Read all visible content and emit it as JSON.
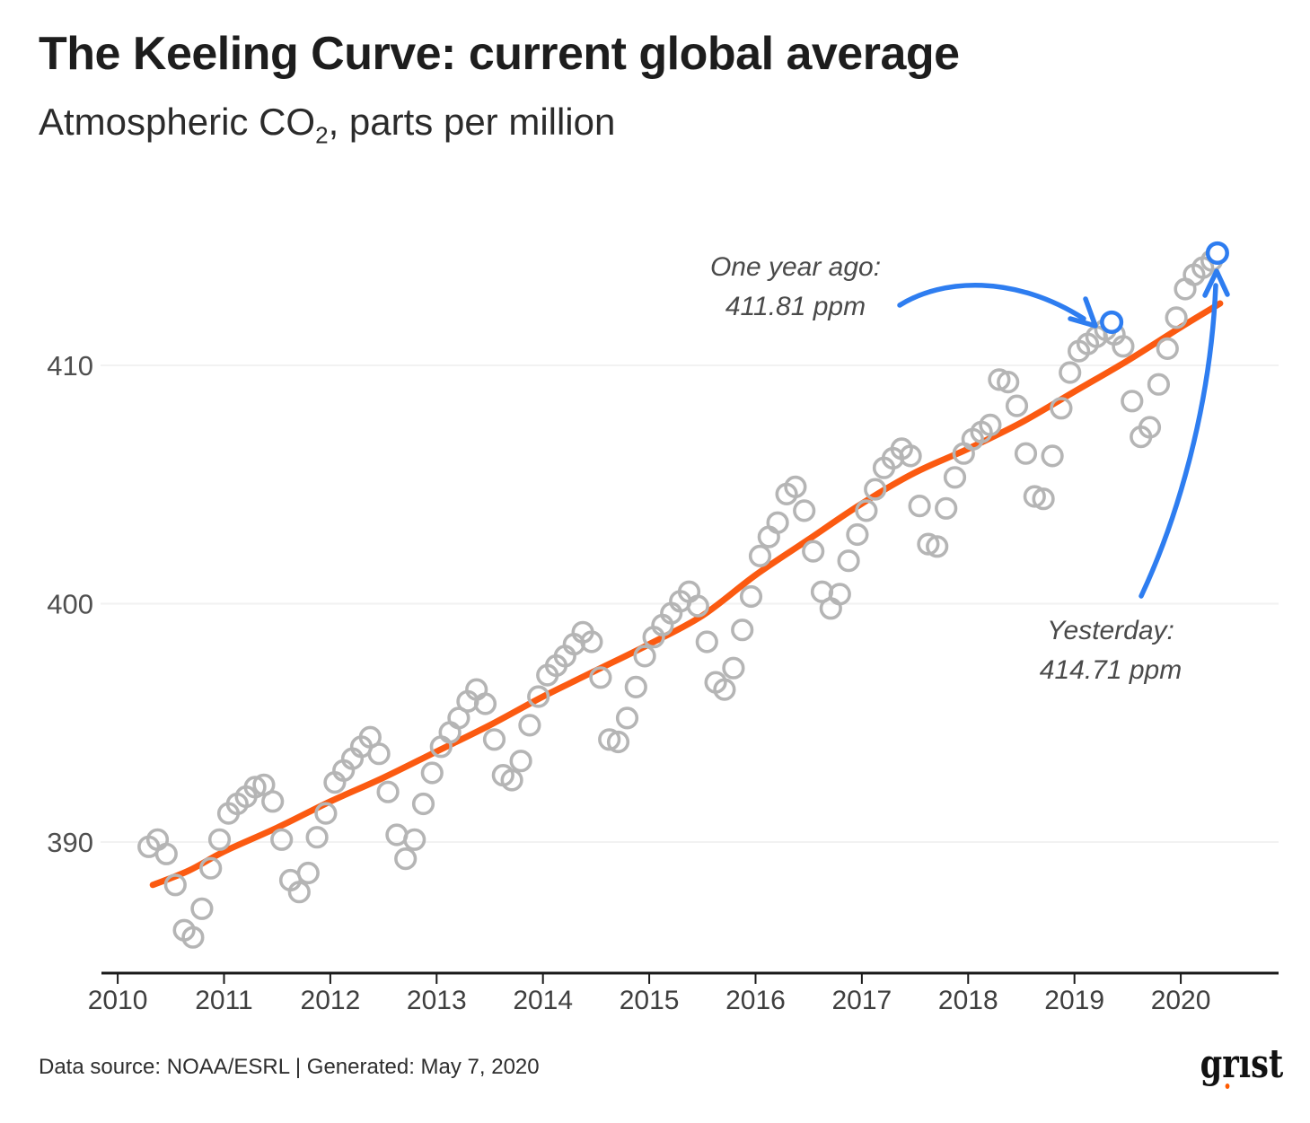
{
  "header": {
    "title": "The Keeling Curve: current global average",
    "subtitle_prefix": "Atmospheric CO",
    "subtitle_sub": "2",
    "subtitle_suffix": ", parts per million"
  },
  "annotations": [
    {
      "id": "one-year-ago",
      "line1": "One year ago:",
      "line2": "411.81 ppm"
    },
    {
      "id": "yesterday",
      "line1": "Yesterday:",
      "line2": "414.71 ppm"
    }
  ],
  "footer": {
    "source_text": "Data source: NOAA/ESRL | Generated: May 7, 2020",
    "logo_text": "grist"
  },
  "colors": {
    "trend_orange": "#fb5a11",
    "highlight_blue": "#2e7df0",
    "point_gray": "#b5b5b5",
    "gridline": "#f2f2f2",
    "axis": "#1a1a1a",
    "tick_label": "#454545",
    "logo_dot_orange": "#ff5a00"
  },
  "chart_data": {
    "type": "scatter",
    "title": "The Keeling Curve: current global average",
    "ylabel": "Atmospheric CO2, parts per million",
    "xlabel": "",
    "grid": "horizontal-only",
    "legend": "none",
    "x_ticks": [
      2010,
      2011,
      2012,
      2013,
      2014,
      2015,
      2016,
      2017,
      2018,
      2019,
      2020
    ],
    "y_ticks": [
      390,
      400,
      410
    ],
    "xlim": [
      2009.864,
      2020.92
    ],
    "ylim": [
      384.5,
      416.0
    ],
    "series": [
      {
        "name": "monthly-mean-co2",
        "style": "open-circle",
        "points": [
          [
            2010.292,
            389.8
          ],
          [
            2010.375,
            390.1
          ],
          [
            2010.458,
            389.5
          ],
          [
            2010.542,
            388.2
          ],
          [
            2010.625,
            386.3
          ],
          [
            2010.708,
            386.0
          ],
          [
            2010.792,
            387.2
          ],
          [
            2010.875,
            388.9
          ],
          [
            2010.958,
            390.1
          ],
          [
            2011.042,
            391.2
          ],
          [
            2011.125,
            391.6
          ],
          [
            2011.208,
            391.9
          ],
          [
            2011.292,
            392.3
          ],
          [
            2011.375,
            392.4
          ],
          [
            2011.458,
            391.7
          ],
          [
            2011.542,
            390.1
          ],
          [
            2011.625,
            388.4
          ],
          [
            2011.708,
            387.9
          ],
          [
            2011.792,
            388.7
          ],
          [
            2011.875,
            390.2
          ],
          [
            2011.958,
            391.2
          ],
          [
            2012.042,
            392.5
          ],
          [
            2012.125,
            393.0
          ],
          [
            2012.208,
            393.5
          ],
          [
            2012.292,
            394.0
          ],
          [
            2012.375,
            394.4
          ],
          [
            2012.458,
            393.7
          ],
          [
            2012.542,
            392.1
          ],
          [
            2012.625,
            390.3
          ],
          [
            2012.708,
            389.3
          ],
          [
            2012.792,
            390.1
          ],
          [
            2012.875,
            391.6
          ],
          [
            2012.958,
            392.9
          ],
          [
            2013.042,
            394.0
          ],
          [
            2013.125,
            394.6
          ],
          [
            2013.208,
            395.2
          ],
          [
            2013.292,
            395.9
          ],
          [
            2013.375,
            396.4
          ],
          [
            2013.458,
            395.8
          ],
          [
            2013.542,
            394.3
          ],
          [
            2013.625,
            392.8
          ],
          [
            2013.708,
            392.6
          ],
          [
            2013.792,
            393.4
          ],
          [
            2013.875,
            394.9
          ],
          [
            2013.958,
            396.1
          ],
          [
            2014.042,
            397.0
          ],
          [
            2014.125,
            397.4
          ],
          [
            2014.208,
            397.8
          ],
          [
            2014.292,
            398.3
          ],
          [
            2014.375,
            398.8
          ],
          [
            2014.458,
            398.4
          ],
          [
            2014.542,
            396.9
          ],
          [
            2014.625,
            394.3
          ],
          [
            2014.708,
            394.2
          ],
          [
            2014.792,
            395.2
          ],
          [
            2014.875,
            396.5
          ],
          [
            2014.958,
            397.8
          ],
          [
            2015.042,
            398.6
          ],
          [
            2015.125,
            399.1
          ],
          [
            2015.208,
            399.6
          ],
          [
            2015.292,
            400.1
          ],
          [
            2015.375,
            400.5
          ],
          [
            2015.458,
            399.9
          ],
          [
            2015.542,
            398.4
          ],
          [
            2015.625,
            396.7
          ],
          [
            2015.708,
            396.4
          ],
          [
            2015.792,
            397.3
          ],
          [
            2015.875,
            398.9
          ],
          [
            2015.958,
            400.3
          ],
          [
            2016.042,
            402.0
          ],
          [
            2016.125,
            402.8
          ],
          [
            2016.208,
            403.4
          ],
          [
            2016.292,
            404.6
          ],
          [
            2016.375,
            404.9
          ],
          [
            2016.458,
            403.9
          ],
          [
            2016.542,
            402.2
          ],
          [
            2016.625,
            400.5
          ],
          [
            2016.708,
            399.8
          ],
          [
            2016.792,
            400.4
          ],
          [
            2016.875,
            401.8
          ],
          [
            2016.958,
            402.9
          ],
          [
            2017.042,
            403.9
          ],
          [
            2017.125,
            404.8
          ],
          [
            2017.208,
            405.7
          ],
          [
            2017.292,
            406.1
          ],
          [
            2017.375,
            406.5
          ],
          [
            2017.458,
            406.2
          ],
          [
            2017.542,
            404.1
          ],
          [
            2017.625,
            402.5
          ],
          [
            2017.708,
            402.4
          ],
          [
            2017.792,
            404.0
          ],
          [
            2017.875,
            405.3
          ],
          [
            2017.958,
            406.3
          ],
          [
            2018.042,
            406.9
          ],
          [
            2018.125,
            407.2
          ],
          [
            2018.208,
            407.5
          ],
          [
            2018.292,
            409.4
          ],
          [
            2018.375,
            409.3
          ],
          [
            2018.458,
            408.3
          ],
          [
            2018.542,
            406.3
          ],
          [
            2018.625,
            404.5
          ],
          [
            2018.708,
            404.4
          ],
          [
            2018.792,
            406.2
          ],
          [
            2018.875,
            408.2
          ],
          [
            2018.958,
            409.7
          ],
          [
            2019.042,
            410.6
          ],
          [
            2019.125,
            410.9
          ],
          [
            2019.208,
            411.2
          ],
          [
            2019.292,
            411.5
          ],
          [
            2019.375,
            411.3
          ],
          [
            2019.458,
            410.8
          ],
          [
            2019.542,
            408.5
          ],
          [
            2019.625,
            407.0
          ],
          [
            2019.708,
            407.4
          ],
          [
            2019.792,
            409.2
          ],
          [
            2019.875,
            410.7
          ],
          [
            2019.958,
            412.0
          ],
          [
            2020.042,
            413.2
          ],
          [
            2020.125,
            413.8
          ],
          [
            2020.208,
            414.1
          ],
          [
            2020.292,
            414.4
          ]
        ]
      },
      {
        "name": "seasonally-adjusted-trend",
        "style": "line",
        "points": [
          [
            2010.33,
            388.2
          ],
          [
            2010.67,
            388.8
          ],
          [
            2011.0,
            389.6
          ],
          [
            2011.5,
            390.6
          ],
          [
            2012.0,
            391.7
          ],
          [
            2012.5,
            392.7
          ],
          [
            2013.0,
            393.8
          ],
          [
            2013.5,
            394.9
          ],
          [
            2014.0,
            396.1
          ],
          [
            2014.5,
            397.2
          ],
          [
            2015.0,
            398.3
          ],
          [
            2015.5,
            399.5
          ],
          [
            2016.0,
            401.2
          ],
          [
            2016.5,
            402.7
          ],
          [
            2017.0,
            404.2
          ],
          [
            2017.5,
            405.5
          ],
          [
            2018.0,
            406.5
          ],
          [
            2018.5,
            407.6
          ],
          [
            2019.0,
            408.9
          ],
          [
            2019.5,
            410.2
          ],
          [
            2020.0,
            411.6
          ],
          [
            2020.37,
            412.6
          ]
        ]
      },
      {
        "name": "highlighted-daily-values",
        "style": "open-circle-highlight",
        "points": [
          [
            2019.35,
            411.81
          ],
          [
            2020.345,
            414.71
          ]
        ],
        "labels": [
          "One year ago: 411.81 ppm",
          "Yesterday: 414.71 ppm"
        ]
      }
    ]
  }
}
